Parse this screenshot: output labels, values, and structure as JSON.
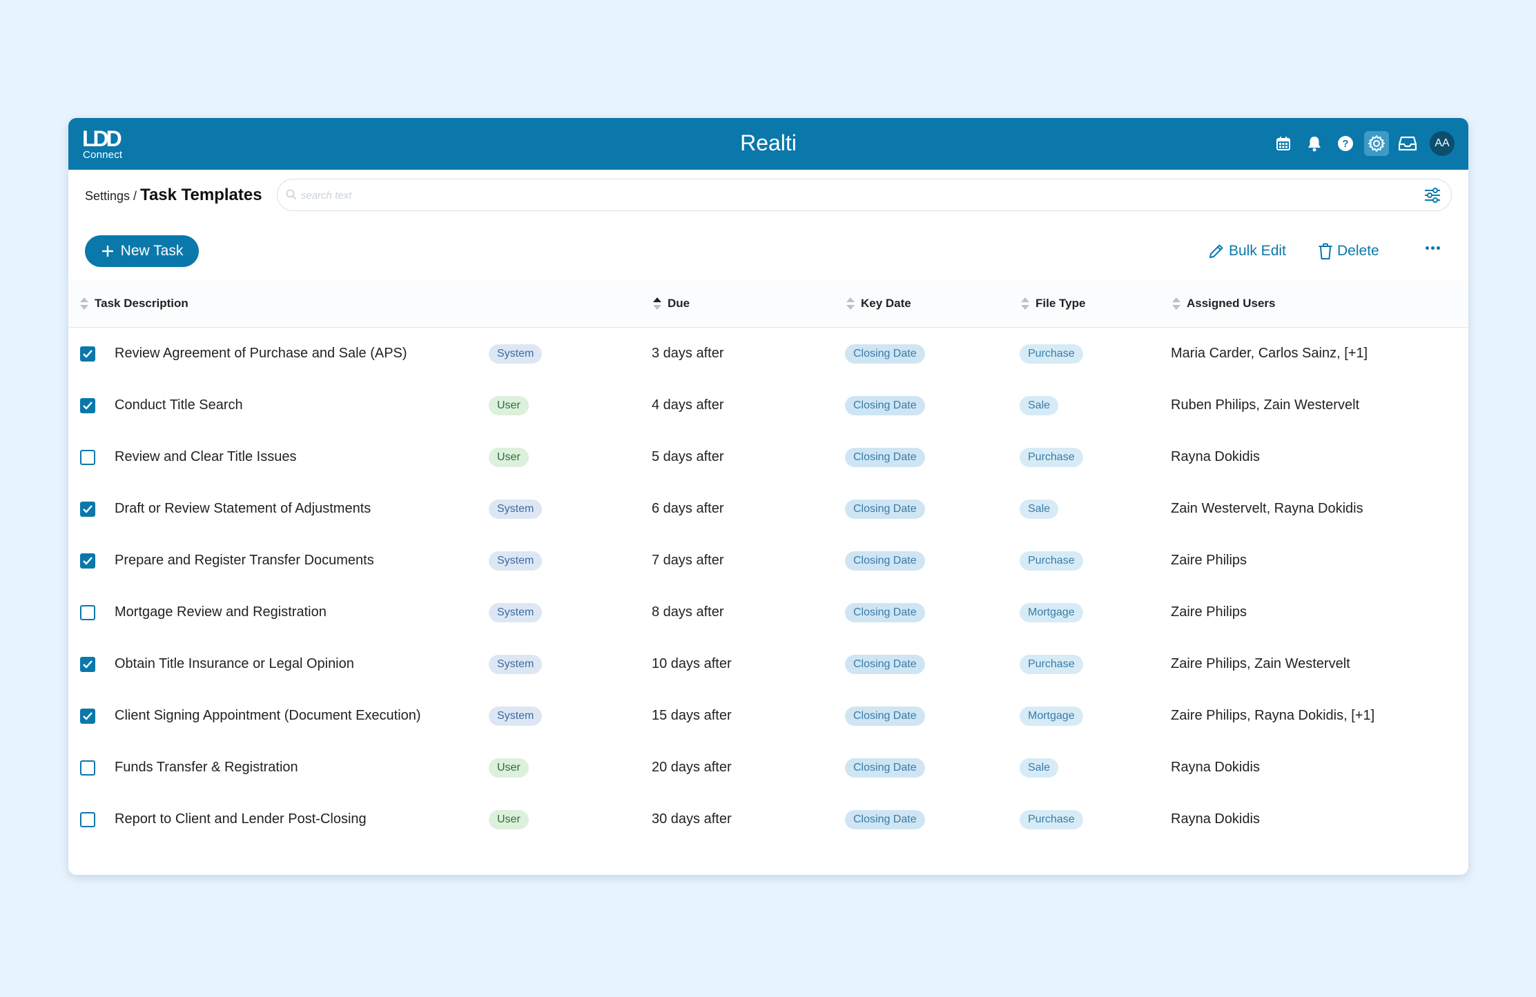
{
  "app": {
    "logo_mark": "LDD",
    "logo_sub": "Connect",
    "title": "Realti",
    "avatar_initials": "AA",
    "brand_color": "#0a78ab"
  },
  "topbar_icons": [
    "calendar-icon",
    "bell-icon",
    "help-icon",
    "gear-icon",
    "inbox-icon"
  ],
  "breadcrumb": {
    "parent": "Settings",
    "separator": " / ",
    "current": "Task Templates"
  },
  "search": {
    "placeholder": "search text",
    "value": ""
  },
  "toolbar": {
    "new_task_label": "New Task",
    "bulk_edit_label": "Bulk Edit",
    "delete_label": "Delete"
  },
  "table": {
    "columns": {
      "task_description": "Task Description",
      "due": "Due",
      "key_date": "Key Date",
      "file_type": "File Type",
      "assigned_users": "Assigned Users"
    },
    "rows": [
      {
        "checked": true,
        "description": "Review Agreement of Purchase and Sale (APS)",
        "source": "System",
        "due": "3 days after",
        "key_date": "Closing Date",
        "file_type": "Purchase",
        "users": "Maria Carder, Carlos Sainz, [+1]"
      },
      {
        "checked": true,
        "description": "Conduct Title Search",
        "source": "User",
        "due": "4 days after",
        "key_date": "Closing Date",
        "file_type": "Sale",
        "users": "Ruben Philips, Zain Westervelt"
      },
      {
        "checked": false,
        "description": "Review and Clear Title Issues",
        "source": "User",
        "due": "5 days after",
        "key_date": "Closing Date",
        "file_type": "Purchase",
        "users": "Rayna Dokidis"
      },
      {
        "checked": true,
        "description": "Draft or Review Statement of Adjustments",
        "source": "System",
        "due": "6 days after",
        "key_date": "Closing Date",
        "file_type": "Sale",
        "users": "Zain Westervelt, Rayna Dokidis"
      },
      {
        "checked": true,
        "description": "Prepare and Register Transfer Documents",
        "source": "System",
        "due": "7 days after",
        "key_date": "Closing Date",
        "file_type": "Purchase",
        "users": "Zaire Philips"
      },
      {
        "checked": false,
        "description": "Mortgage Review and Registration",
        "source": "System",
        "due": "8 days after",
        "key_date": "Closing Date",
        "file_type": "Mortgage",
        "users": "Zaire Philips"
      },
      {
        "checked": true,
        "description": "Obtain Title Insurance or Legal Opinion",
        "source": "System",
        "due": "10 days after",
        "key_date": "Closing Date",
        "file_type": "Purchase",
        "users": "Zaire Philips, Zain Westervelt"
      },
      {
        "checked": true,
        "description": "Client Signing Appointment (Document Execution)",
        "source": "System",
        "due": "15 days after",
        "key_date": "Closing Date",
        "file_type": "Mortgage",
        "users": "Zaire Philips, Rayna Dokidis, [+1]"
      },
      {
        "checked": false,
        "description": "Funds Transfer & Registration",
        "source": "User",
        "due": "20 days after",
        "key_date": "Closing Date",
        "file_type": "Sale",
        "users": "Rayna Dokidis"
      },
      {
        "checked": false,
        "description": "Report to Client and Lender Post-Closing",
        "source": "User",
        "due": "30 days after",
        "key_date": "Closing Date",
        "file_type": "Purchase",
        "users": "Rayna Dokidis"
      }
    ]
  }
}
